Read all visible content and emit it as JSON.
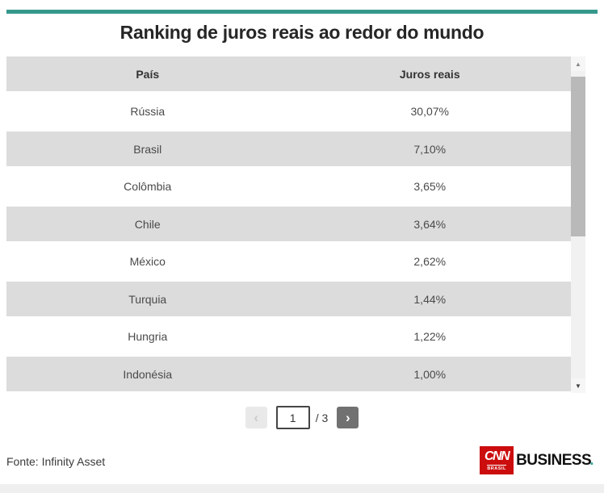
{
  "page": {
    "title": "Ranking de juros reais ao redor do mundo",
    "source": "Fonte: Infinity Asset"
  },
  "chart_data": {
    "type": "table",
    "title": "Ranking de juros reais ao redor do mundo",
    "columns": [
      "País",
      "Juros reais"
    ],
    "rows": [
      [
        "Rússia",
        "30,07%"
      ],
      [
        "Brasil",
        "7,10%"
      ],
      [
        "Colômbia",
        "3,65%"
      ],
      [
        "Chile",
        "3,64%"
      ],
      [
        "México",
        "2,62%"
      ],
      [
        "Turquia",
        "1,44%"
      ],
      [
        "Hungria",
        "1,22%"
      ],
      [
        "Indonésia",
        "1,00%"
      ]
    ],
    "values_numeric_percent": [
      30.07,
      7.1,
      3.65,
      3.64,
      2.62,
      1.44,
      1.22,
      1.0
    ],
    "source": "Fonte: Infinity Asset",
    "pagination": {
      "page": 1,
      "total_pages": 3
    }
  },
  "pagination": {
    "current_page": "1",
    "total_label": "/ 3"
  },
  "icons": {
    "prev": "‹",
    "next": "›",
    "scroll_up": "▲",
    "scroll_down": "▼"
  },
  "logo": {
    "cnn": "CNN",
    "brasil": "BRASIL",
    "business": "BUSINESS",
    "dot": "."
  },
  "colors": {
    "accent_teal": "#36988c",
    "logo_red": "#cc0d0d",
    "logo_dot_teal": "#3aa79a",
    "row_gray": "#dcdcdc"
  }
}
